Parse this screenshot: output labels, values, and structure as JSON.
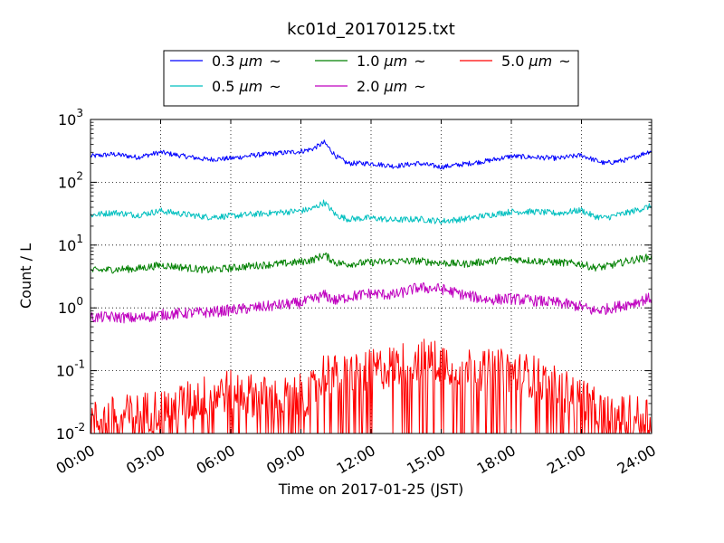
{
  "chart_data": {
    "type": "line",
    "title": "kc01d_20170125.txt",
    "xlabel": "Time on 2017-01-25 (JST)",
    "ylabel": "Count / L",
    "xlim": [
      "00:00",
      "24:00"
    ],
    "xlim_hours": [
      0,
      24
    ],
    "x_ticks": [
      "00:00",
      "03:00",
      "06:00",
      "09:00",
      "12:00",
      "15:00",
      "18:00",
      "21:00",
      "24:00"
    ],
    "y_scale": "log",
    "ylim": [
      0.01,
      1000
    ],
    "y_ticks": [
      {
        "base": "10",
        "exp": "-2"
      },
      {
        "base": "10",
        "exp": "-1"
      },
      {
        "base": "10",
        "exp": "0"
      },
      {
        "base": "10",
        "exp": "1"
      },
      {
        "base": "10",
        "exp": "2"
      },
      {
        "base": "10",
        "exp": "3"
      }
    ],
    "grid": true,
    "legend_placement": "top-center",
    "legend_unit": "μm",
    "legend_suffix": "~",
    "series": [
      {
        "name": "0.3",
        "color": "#0000ff",
        "x": [
          0,
          1,
          2,
          3,
          4,
          5,
          6,
          7,
          8,
          9,
          9.5,
          10,
          10.5,
          11,
          12,
          13,
          14,
          15,
          16,
          17,
          18,
          19,
          20,
          21,
          21.5,
          22,
          23,
          24
        ],
        "values": [
          260,
          280,
          250,
          300,
          260,
          230,
          240,
          270,
          290,
          310,
          340,
          430,
          260,
          200,
          200,
          180,
          200,
          175,
          195,
          220,
          260,
          250,
          240,
          270,
          230,
          200,
          230,
          320
        ]
      },
      {
        "name": "0.5",
        "color": "#00bfbf",
        "x": [
          0,
          1,
          2,
          3,
          4,
          5,
          6,
          7,
          8,
          9,
          9.5,
          10,
          10.5,
          11,
          12,
          13,
          14,
          15,
          16,
          17,
          18,
          19,
          20,
          21,
          21.5,
          22,
          23,
          24
        ],
        "values": [
          30,
          33,
          30,
          35,
          31,
          28,
          29,
          31,
          33,
          35,
          38,
          48,
          30,
          26,
          27,
          25,
          26,
          24,
          26,
          30,
          34,
          34,
          32,
          36,
          29,
          27,
          33,
          42
        ]
      },
      {
        "name": "1.0",
        "color": "#008000",
        "x": [
          0,
          1,
          2,
          3,
          4,
          5,
          6,
          7,
          8,
          9,
          9.5,
          10,
          10.5,
          11,
          12,
          13,
          14,
          15,
          16,
          17,
          18,
          19,
          20,
          21,
          21.5,
          22,
          23,
          24
        ],
        "values": [
          3.9,
          4.1,
          4.2,
          4.8,
          4.4,
          4.0,
          4.3,
          4.7,
          5.0,
          5.4,
          5.8,
          7.0,
          5.2,
          5.0,
          5.3,
          5.5,
          5.6,
          5.2,
          5.0,
          5.5,
          6.0,
          5.6,
          5.3,
          5.0,
          4.4,
          4.5,
          5.6,
          6.5
        ]
      },
      {
        "name": "2.0",
        "color": "#bf00bf",
        "x": [
          0,
          1,
          2,
          3,
          4,
          5,
          6,
          7,
          8,
          9,
          9.5,
          10,
          10.5,
          11,
          12,
          13,
          14,
          15,
          16,
          17,
          18,
          19,
          20,
          21,
          21.5,
          22,
          23,
          24
        ],
        "values": [
          0.7,
          0.72,
          0.68,
          0.78,
          0.82,
          0.85,
          0.92,
          1.0,
          1.1,
          1.2,
          1.35,
          1.6,
          1.3,
          1.5,
          1.7,
          1.6,
          2.1,
          2.0,
          1.6,
          1.35,
          1.4,
          1.3,
          1.2,
          1.05,
          0.9,
          0.95,
          1.15,
          1.45
        ]
      },
      {
        "name": "5.0",
        "color": "#ff0000",
        "x": [
          0,
          1,
          2,
          3,
          4,
          5,
          6,
          7,
          8,
          9,
          9.5,
          10,
          10.5,
          11,
          12,
          13,
          14,
          15,
          16,
          17,
          18,
          19,
          20,
          21,
          21.5,
          22,
          23,
          24
        ],
        "values": [
          0.015,
          0.018,
          0.02,
          0.025,
          0.03,
          0.04,
          0.05,
          0.04,
          0.035,
          0.04,
          0.045,
          0.1,
          0.08,
          0.09,
          0.1,
          0.12,
          0.15,
          0.14,
          0.12,
          0.1,
          0.1,
          0.08,
          0.05,
          0.04,
          0.025,
          0.02,
          0.018,
          0.02
        ]
      }
    ]
  }
}
